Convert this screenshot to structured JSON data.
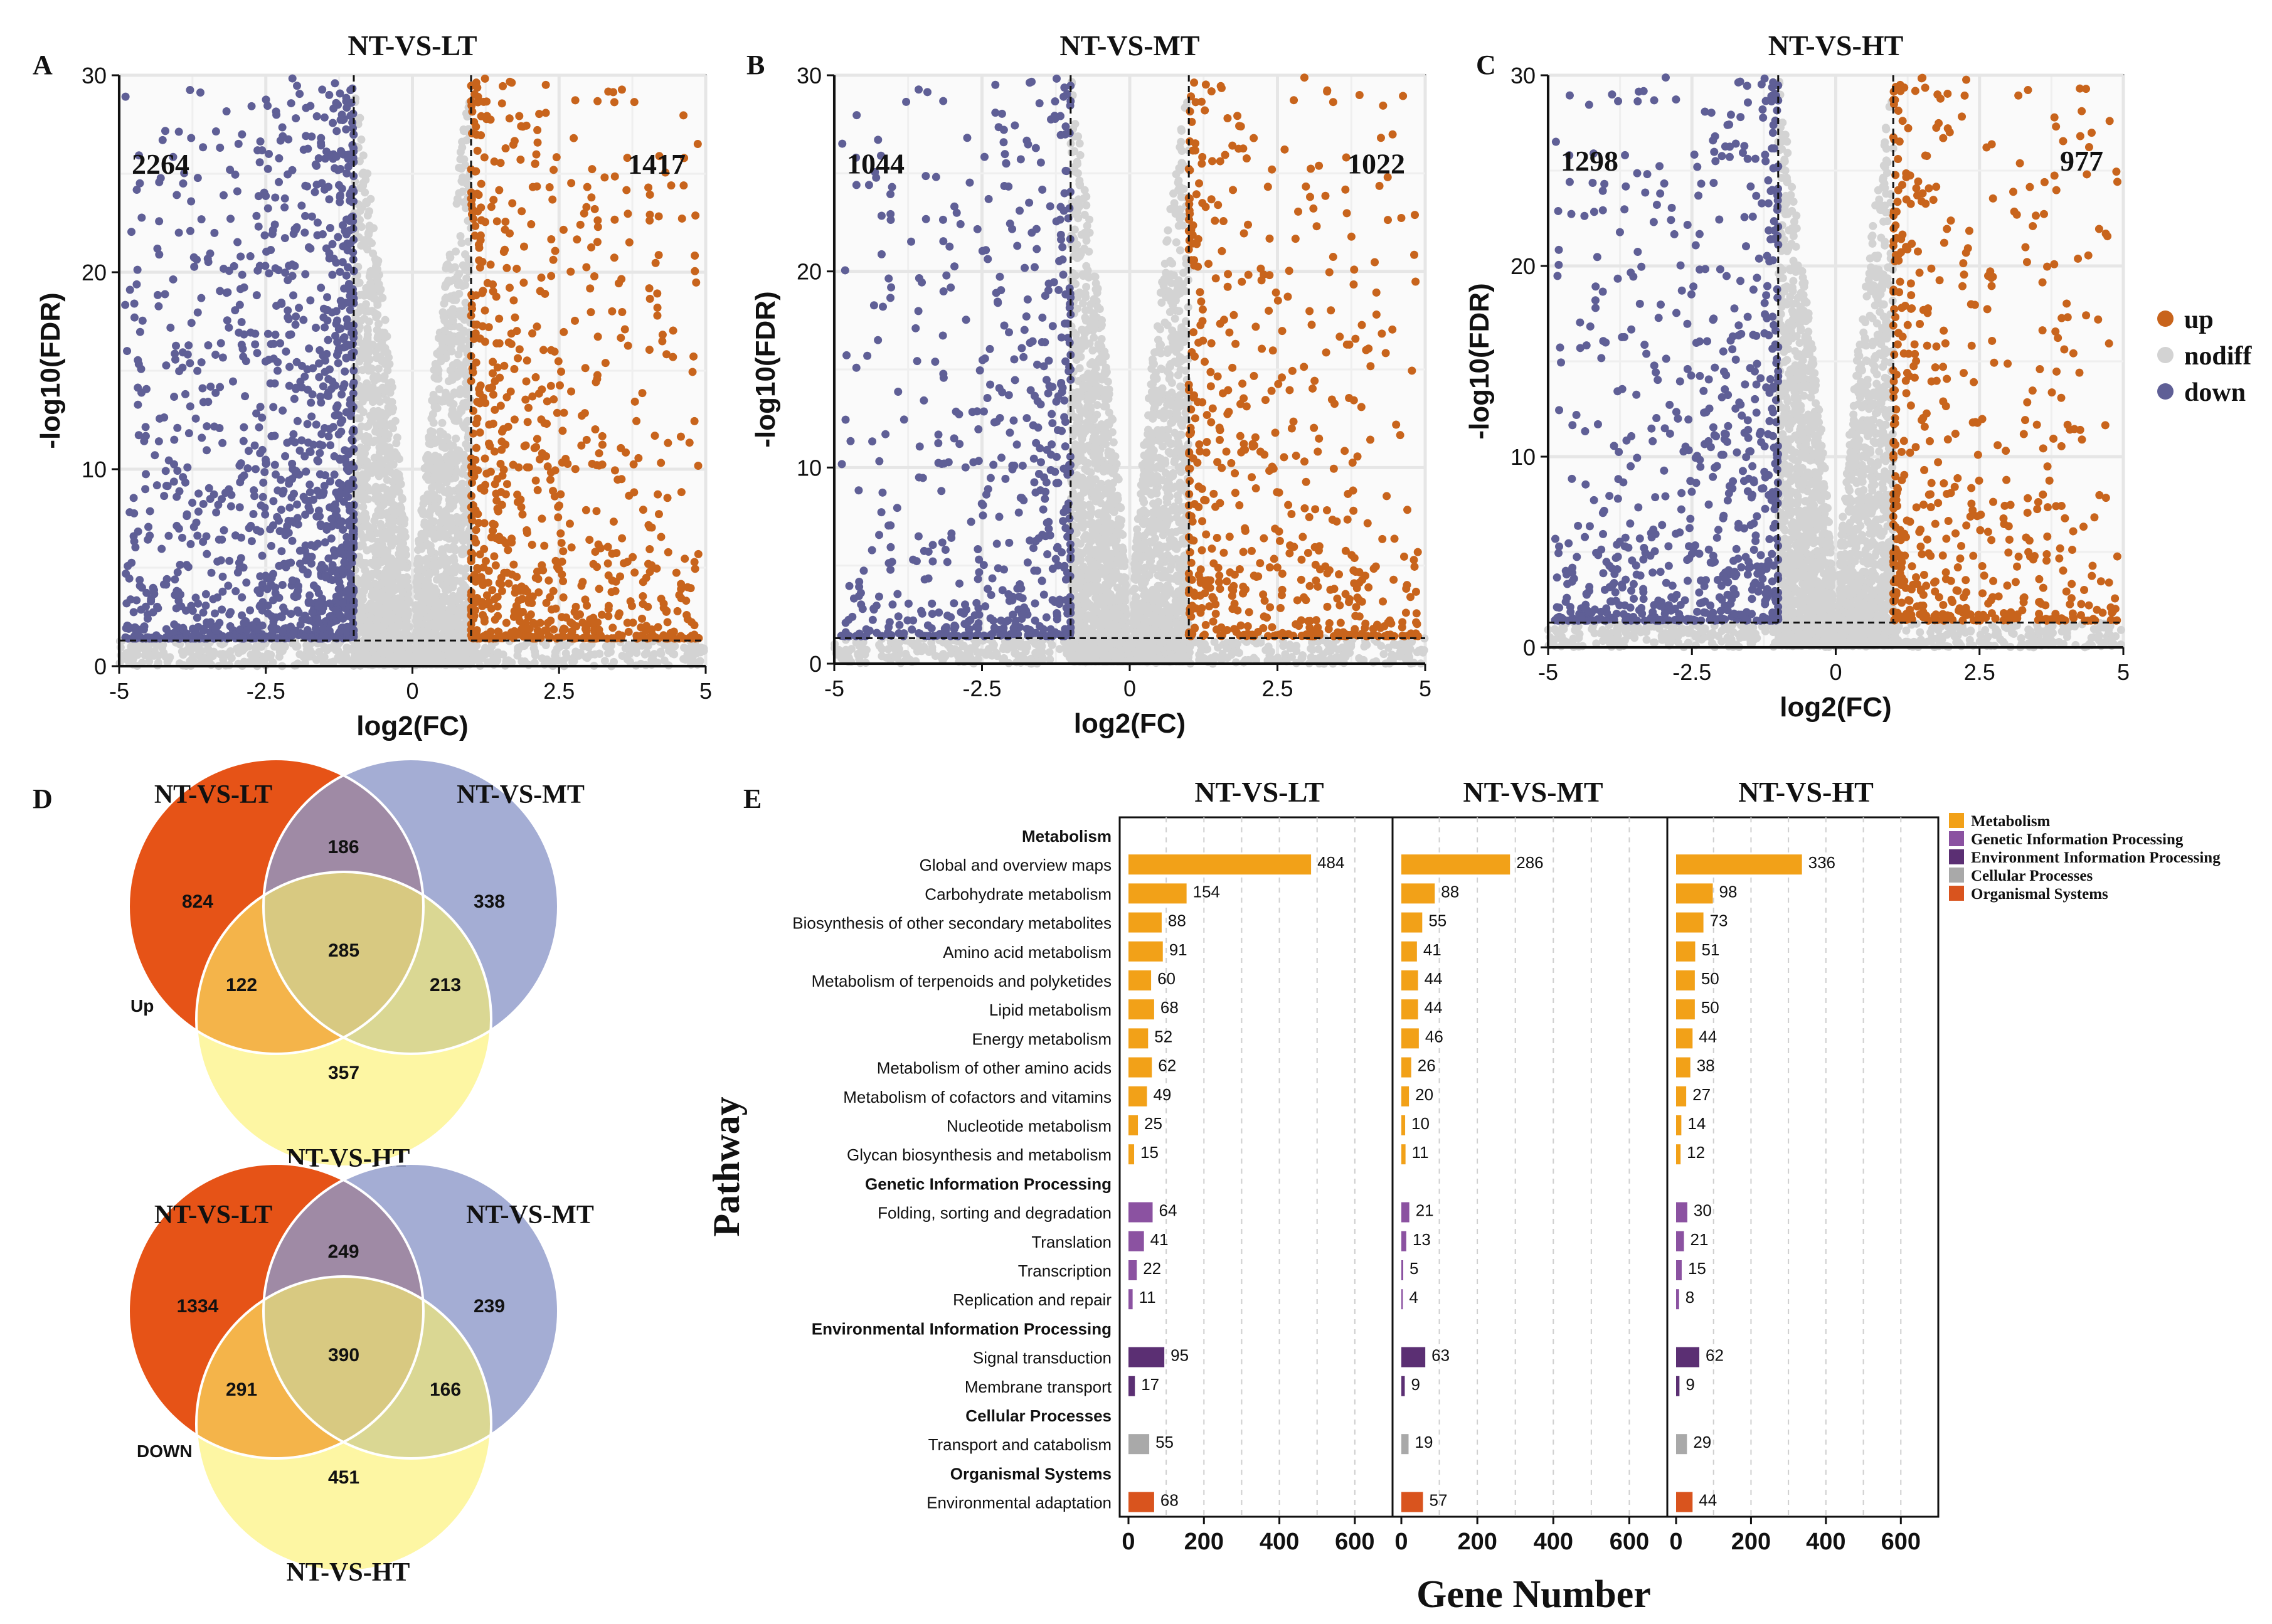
{
  "colors": {
    "up": "#C8641C",
    "nodiff": "#D3D3D3",
    "down": "#5F5F96",
    "metabolism": "#F2A118",
    "genetic": "#8B52A1",
    "environment": "#5B2F73",
    "cellular": "#A9A9A9",
    "organismal": "#D9541E",
    "venn_lt": "#E65317",
    "venn_mt": "#8D99C9",
    "venn_ht": "#FBF06A"
  },
  "panel_letters": [
    "A",
    "B",
    "C",
    "D",
    "E"
  ],
  "chart_data": [
    {
      "type": "scatter",
      "title": "NT-VS-LT",
      "xlabel": "log2(FC)",
      "ylabel": "-log10(FDR)",
      "xlim": [
        -5,
        5
      ],
      "ylim": [
        0,
        30
      ],
      "xticks": [
        "-5",
        "-2.5",
        "0",
        "2.5",
        "5"
      ],
      "yticks": [
        "0",
        "10",
        "20",
        "30"
      ],
      "thresholds": {
        "log2fc": [
          -1,
          1
        ],
        "fdr": 1.3
      },
      "counts": {
        "down": "2264",
        "up": "1417"
      },
      "series": [
        {
          "name": "up",
          "count": 1417
        },
        {
          "name": "nodiff"
        },
        {
          "name": "down",
          "count": 2264
        }
      ]
    },
    {
      "type": "scatter",
      "title": "NT-VS-MT",
      "xlabel": "log2(FC)",
      "ylabel": "-log10(FDR)",
      "xlim": [
        -5,
        5
      ],
      "ylim": [
        0,
        30
      ],
      "xticks": [
        "-5",
        "-2.5",
        "0",
        "2.5",
        "5"
      ],
      "yticks": [
        "0",
        "10",
        "20",
        "30"
      ],
      "thresholds": {
        "log2fc": [
          -1,
          1
        ],
        "fdr": 1.3
      },
      "counts": {
        "down": "1044",
        "up": "1022"
      },
      "series": [
        {
          "name": "up",
          "count": 1022
        },
        {
          "name": "nodiff"
        },
        {
          "name": "down",
          "count": 1044
        }
      ]
    },
    {
      "type": "scatter",
      "title": "NT-VS-HT",
      "xlabel": "log2(FC)",
      "ylabel": "-log10(FDR)",
      "xlim": [
        -5,
        5
      ],
      "ylim": [
        0,
        30
      ],
      "xticks": [
        "-5",
        "-2.5",
        "0",
        "2.5",
        "5"
      ],
      "yticks": [
        "0",
        "10",
        "20",
        "30"
      ],
      "thresholds": {
        "log2fc": [
          -1,
          1
        ],
        "fdr": 1.3
      },
      "counts": {
        "down": "1298",
        "up": "977"
      },
      "series": [
        {
          "name": "up",
          "count": 977
        },
        {
          "name": "nodiff"
        },
        {
          "name": "down",
          "count": 1298
        }
      ],
      "legend": {
        "position": "right",
        "items": [
          "up",
          "nodiff",
          "down"
        ]
      }
    },
    {
      "type": "venn",
      "label": "Up",
      "sets": [
        "NT-VS-LT",
        "NT-VS-MT",
        "NT-VS-HT"
      ],
      "regions": {
        "lt": 824,
        "mt": 338,
        "ht": 357,
        "lt_mt": 186,
        "lt_ht": 122,
        "mt_ht": 213,
        "all": 285
      }
    },
    {
      "type": "venn",
      "label": "DOWN",
      "sets": [
        "NT-VS-LT",
        "NT-VS-MT",
        "NT-VS-HT"
      ],
      "regions": {
        "lt": 1334,
        "mt": 239,
        "ht": 451,
        "lt_mt": 249,
        "lt_ht": 291,
        "mt_ht": 166,
        "all": 390
      }
    },
    {
      "type": "bar",
      "orientation": "horizontal",
      "ylabel": "Pathway",
      "xlabel": "Gene Number",
      "xlim": [
        0,
        700
      ],
      "xticks": [
        "0",
        "200",
        "400",
        "600"
      ],
      "panels": [
        "NT-VS-LT",
        "NT-VS-MT",
        "NT-VS-HT"
      ],
      "legend": [
        "Metabolism",
        "Genetic Information Processing",
        "Environment Information Processing",
        "Cellular Processes",
        "Organismal Systems"
      ],
      "rows": [
        {
          "label": "Metabolism",
          "header": true
        },
        {
          "label": "Global and overview maps",
          "cat": "metabolism",
          "values": [
            484,
            286,
            336
          ]
        },
        {
          "label": "Carbohydrate metabolism",
          "cat": "metabolism",
          "values": [
            154,
            88,
            98
          ]
        },
        {
          "label": "Biosynthesis of other secondary metabolites",
          "cat": "metabolism",
          "values": [
            88,
            55,
            73
          ]
        },
        {
          "label": "Amino acid metabolism",
          "cat": "metabolism",
          "values": [
            91,
            41,
            51
          ]
        },
        {
          "label": "Metabolism of terpenoids and polyketides",
          "cat": "metabolism",
          "values": [
            60,
            44,
            50
          ]
        },
        {
          "label": "Lipid metabolism",
          "cat": "metabolism",
          "values": [
            68,
            44,
            50
          ]
        },
        {
          "label": "Energy metabolism",
          "cat": "metabolism",
          "values": [
            52,
            46,
            44
          ]
        },
        {
          "label": "Metabolism of other amino acids",
          "cat": "metabolism",
          "values": [
            62,
            26,
            38
          ]
        },
        {
          "label": "Metabolism of cofactors and vitamins",
          "cat": "metabolism",
          "values": [
            49,
            20,
            27
          ]
        },
        {
          "label": "Nucleotide metabolism",
          "cat": "metabolism",
          "values": [
            25,
            10,
            14
          ]
        },
        {
          "label": "Glycan biosynthesis and metabolism",
          "cat": "metabolism",
          "values": [
            15,
            11,
            12
          ]
        },
        {
          "label": "Genetic Information Processing",
          "header": true
        },
        {
          "label": "Folding, sorting and degradation",
          "cat": "genetic",
          "values": [
            64,
            21,
            30
          ]
        },
        {
          "label": "Translation",
          "cat": "genetic",
          "values": [
            41,
            13,
            21
          ]
        },
        {
          "label": "Transcription",
          "cat": "genetic",
          "values": [
            22,
            5,
            15
          ]
        },
        {
          "label": "Replication and repair",
          "cat": "genetic",
          "values": [
            11,
            4,
            8
          ]
        },
        {
          "label": "Environmental Information Processing",
          "header": true
        },
        {
          "label": "Signal transduction",
          "cat": "environment",
          "values": [
            95,
            63,
            62
          ]
        },
        {
          "label": "Membrane transport",
          "cat": "environment",
          "values": [
            17,
            9,
            9
          ]
        },
        {
          "label": "Cellular Processes",
          "header": true
        },
        {
          "label": "Transport and catabolism",
          "cat": "cellular",
          "values": [
            55,
            19,
            29
          ]
        },
        {
          "label": "Organismal Systems",
          "header": true
        },
        {
          "label": "Environmental adaptation",
          "cat": "organismal",
          "values": [
            68,
            57,
            44
          ]
        }
      ]
    }
  ]
}
